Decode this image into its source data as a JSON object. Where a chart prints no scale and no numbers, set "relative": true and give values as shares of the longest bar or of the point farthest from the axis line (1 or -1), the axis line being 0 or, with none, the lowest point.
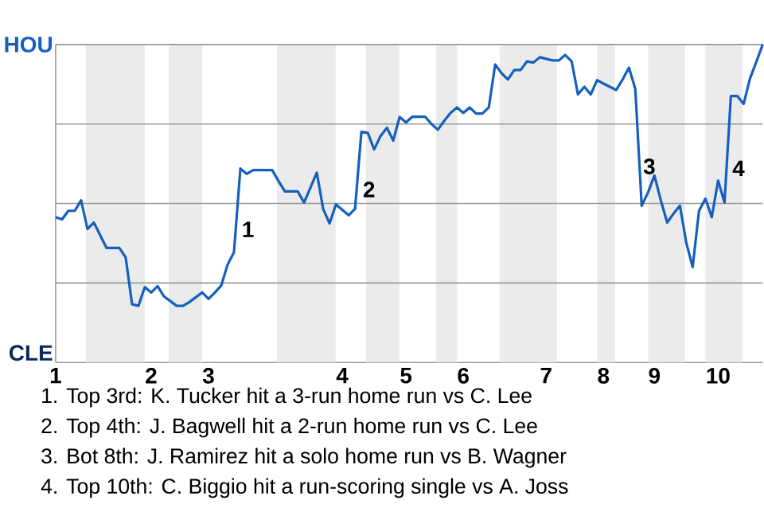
{
  "chart_data": {
    "type": "line",
    "relative": true,
    "categories": [
      "1",
      null,
      null,
      null,
      null,
      null,
      null,
      null,
      null,
      null,
      null,
      null,
      null,
      null,
      null,
      "2",
      null,
      null,
      null,
      null,
      null,
      null,
      null,
      null,
      "3",
      null,
      null,
      null,
      null,
      null,
      null,
      null,
      null,
      null,
      null,
      null,
      null,
      null,
      null,
      null,
      null,
      null,
      null,
      null,
      null,
      "4",
      null,
      null,
      null,
      null,
      null,
      null,
      null,
      null,
      null,
      "5",
      null,
      null,
      null,
      null,
      null,
      null,
      null,
      null,
      "6",
      null,
      null,
      null,
      null,
      null,
      null,
      null,
      null,
      null,
      null,
      null,
      null,
      "7",
      null,
      null,
      null,
      null,
      null,
      null,
      null,
      null,
      "8",
      null,
      null,
      null,
      null,
      null,
      null,
      null,
      "9",
      null,
      null,
      null,
      null,
      null,
      null,
      null,
      null,
      null,
      "10",
      null,
      null,
      null,
      null,
      null,
      null,
      null
    ],
    "grid": "y",
    "marker": "none",
    "line_style": "solid",
    "series": [
      {
        "color": "#1560bd",
        "values": [
          0.457,
          0.45,
          0.477,
          0.477,
          0.51,
          0.42,
          0.44,
          0.4,
          0.36,
          0.36,
          0.36,
          0.33,
          0.183,
          0.178,
          0.237,
          0.22,
          0.24,
          0.208,
          0.193,
          0.178,
          0.178,
          0.19,
          0.205,
          0.22,
          0.2,
          0.22,
          0.242,
          0.308,
          0.347,
          0.61,
          0.593,
          0.605,
          0.605,
          0.605,
          0.605,
          0.57,
          0.538,
          0.538,
          0.538,
          0.503,
          0.55,
          0.597,
          0.483,
          0.437,
          0.497,
          0.48,
          0.463,
          0.483,
          0.725,
          0.722,
          0.67,
          0.712,
          0.738,
          0.698,
          0.772,
          0.755,
          0.773,
          0.773,
          0.773,
          0.75,
          0.732,
          0.76,
          0.785,
          0.802,
          0.785,
          0.802,
          0.783,
          0.783,
          0.802,
          0.937,
          0.91,
          0.89,
          0.92,
          0.92,
          0.947,
          0.943,
          0.96,
          0.955,
          0.95,
          0.95,
          0.967,
          0.947,
          0.843,
          0.867,
          0.843,
          0.888,
          0.877,
          0.867,
          0.857,
          0.89,
          0.927,
          0.86,
          0.493,
          0.535,
          0.588,
          0.51,
          0.44,
          0.468,
          0.493,
          0.377,
          0.3,
          0.477,
          0.515,
          0.457,
          0.572,
          0.503,
          0.838,
          0.838,
          0.813,
          0.893,
          0.946,
          1
        ]
      }
    ],
    "annotations": [
      "HOU",
      "CLE",
      "1",
      "2",
      "3",
      "4",
      "1. Top 3rd: K. Tucker hit a 3-run home run vs C. Lee",
      "2. Top 4th: J. Bagwell hit a 2-run home run vs C. Lee",
      "3. Bot 8th: J. Ramirez hit a solo home run vs B. Wagner",
      "4. Top 10th: C. Biggio hit a run-scoring single vs A. Joss"
    ]
  }
}
